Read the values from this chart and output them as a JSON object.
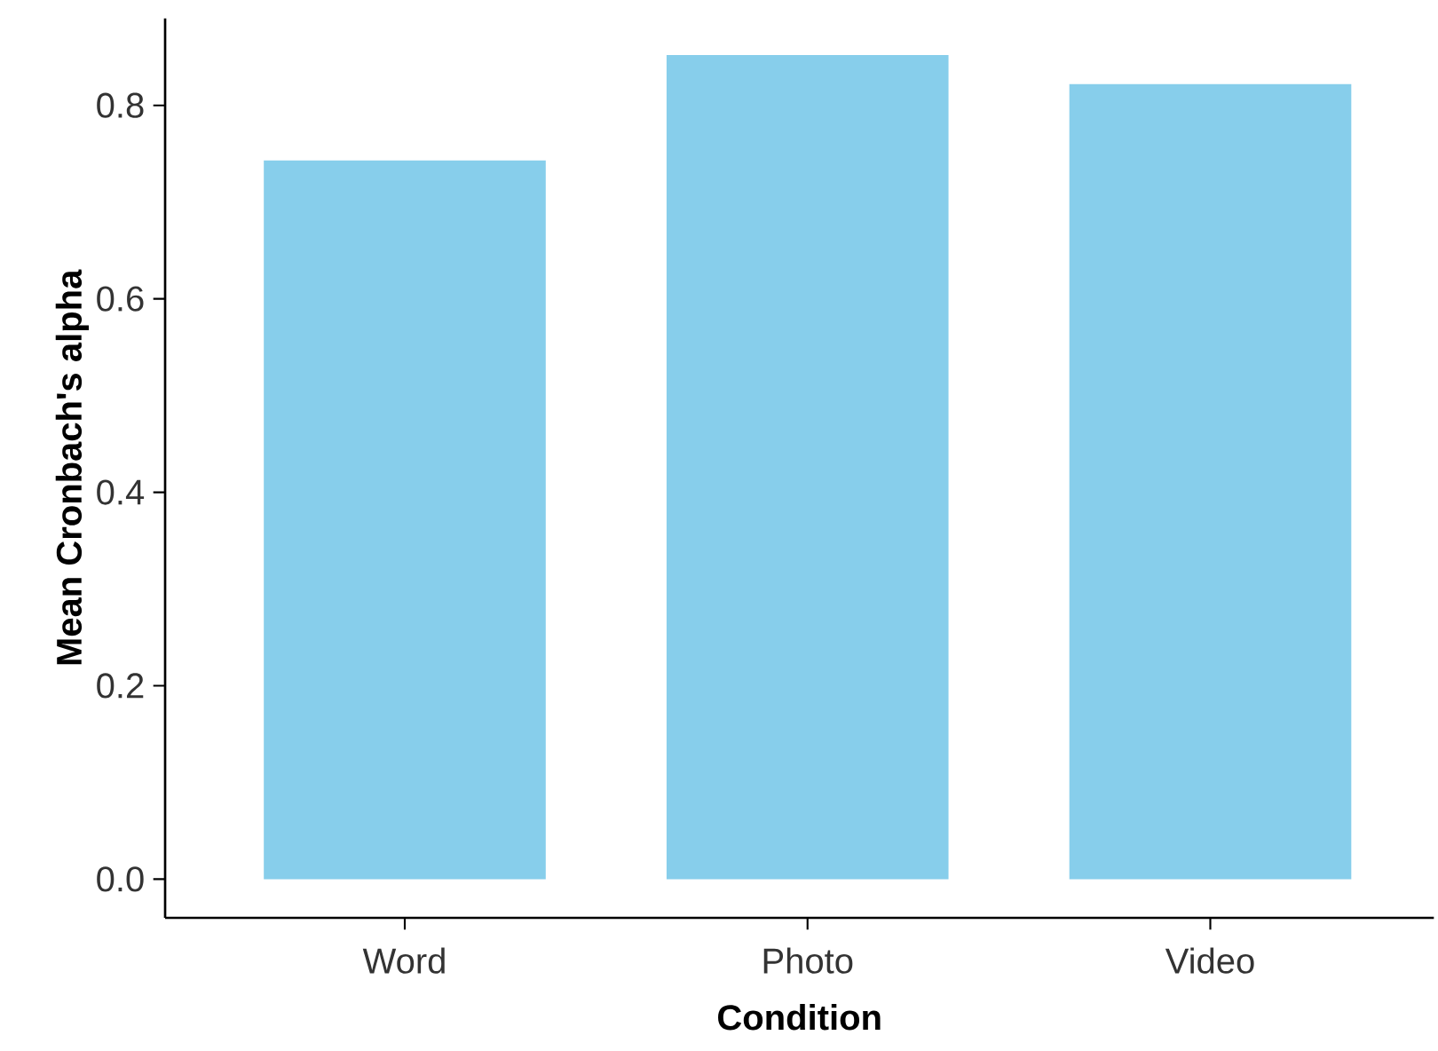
{
  "chart_data": {
    "type": "bar",
    "xlabel": "Condition",
    "ylabel": "Mean Cronbach's alpha",
    "categories": [
      "Word",
      "Photo",
      "Video"
    ],
    "values": [
      0.743,
      0.852,
      0.822
    ],
    "color": "#87ceeb",
    "ylim": [
      -0.04,
      0.89
    ],
    "yticks": [
      {
        "value": 0,
        "label": "0.0"
      },
      0.2,
      0.4,
      0.6,
      0.8
    ],
    "grid": false
  }
}
